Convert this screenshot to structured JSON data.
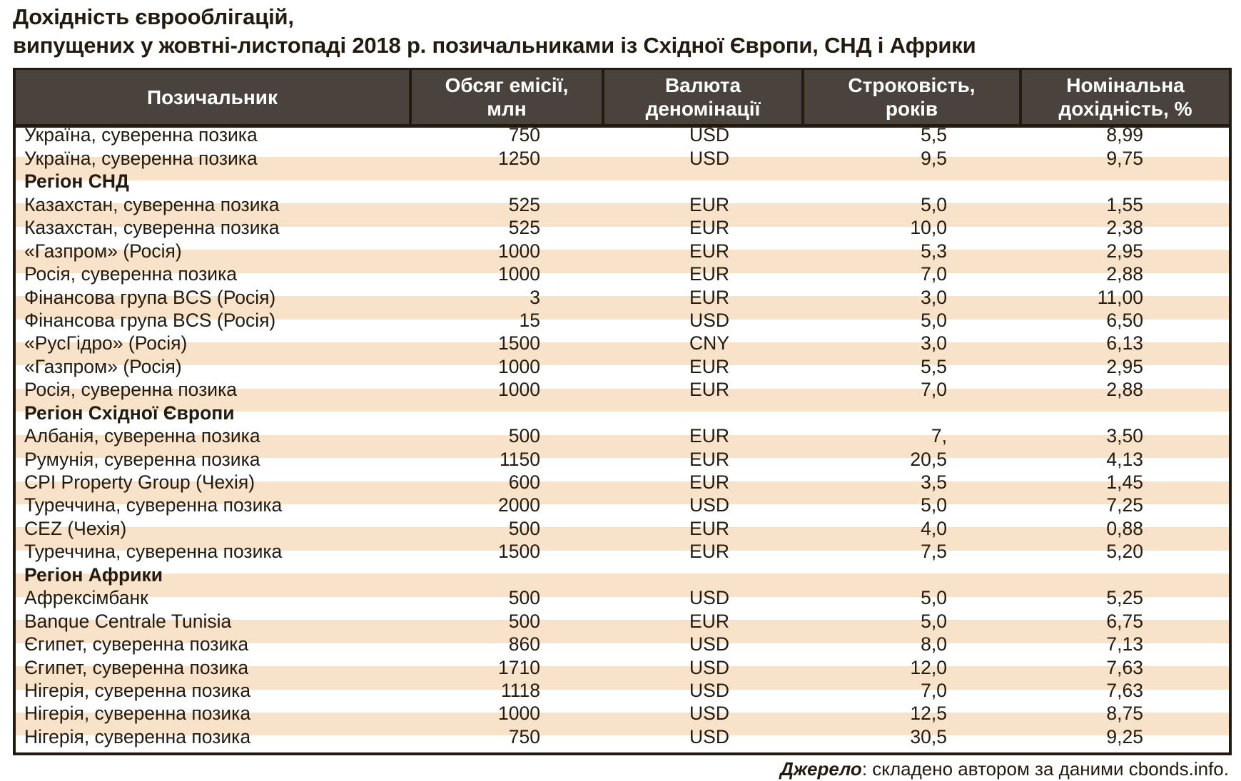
{
  "title": {
    "line1": "Дохідність єврооблігацій,",
    "line2": "випущених у жовтні-листопаді 2018 р. позичальниками із Східної Європи, СНД і Африки"
  },
  "headers": [
    "Позичальник",
    "Обсяг емісії, млн",
    "Валюта деномінації",
    "Строковість, років",
    "Номінальна дохідність, %"
  ],
  "headers_lines": [
    [
      "Позичальник"
    ],
    [
      "Обсяг емісії,",
      "млн"
    ],
    [
      "Валюта",
      "деномінації"
    ],
    [
      "Строковість,",
      "років"
    ],
    [
      "Номінальна",
      "дохідність, %"
    ]
  ],
  "rows": [
    {
      "type": "data",
      "name": "Україна, суверенна позика",
      "volume": "750",
      "currency": "USD",
      "maturity": "5,5",
      "yield": "8,99"
    },
    {
      "type": "data",
      "name": "Україна, суверенна позика",
      "volume": "1250",
      "currency": "USD",
      "maturity": "9,5",
      "yield": "9,75"
    },
    {
      "type": "section",
      "name": "Регіон СНД"
    },
    {
      "type": "data",
      "name": "Казахстан, суверенна позика",
      "volume": "525",
      "currency": "EUR",
      "maturity": "5,0",
      "yield": "1,55"
    },
    {
      "type": "data",
      "name": "Казахстан, суверенна позика",
      "volume": "525",
      "currency": "EUR",
      "maturity": "10,0",
      "yield": "2,38"
    },
    {
      "type": "data",
      "name": "«Газпром» (Росія)",
      "volume": "1000",
      "currency": "EUR",
      "maturity": "5,3",
      "yield": "2,95"
    },
    {
      "type": "data",
      "name": "Росія, суверенна позика",
      "volume": "1000",
      "currency": "EUR",
      "maturity": "7,0",
      "yield": "2,88"
    },
    {
      "type": "data",
      "name": "Фінансова група BCS (Росія)",
      "volume": "3",
      "currency": "EUR",
      "maturity": "3,0",
      "yield": "11,00"
    },
    {
      "type": "data",
      "name": "Фінансова група BCS (Росія)",
      "volume": "15",
      "currency": "USD",
      "maturity": "5,0",
      "yield": "6,50"
    },
    {
      "type": "data",
      "name": "«РусГідро» (Росія)",
      "volume": "1500",
      "currency": "CNY",
      "maturity": "3,0",
      "yield": "6,13"
    },
    {
      "type": "data",
      "name": "«Газпром» (Росія)",
      "volume": "1000",
      "currency": "EUR",
      "maturity": "5,5",
      "yield": "2,95"
    },
    {
      "type": "data",
      "name": "Росія, суверенна позика",
      "volume": "1000",
      "currency": "EUR",
      "maturity": "7,0",
      "yield": "2,88"
    },
    {
      "type": "section",
      "name": "Регіон Східної Європи"
    },
    {
      "type": "data",
      "name": "Албанія, суверенна позика",
      "volume": "500",
      "currency": "EUR",
      "maturity": "7,",
      "yield": "3,50"
    },
    {
      "type": "data",
      "name": "Румунія, суверенна позика",
      "volume": "1150",
      "currency": "EUR",
      "maturity": "20,5",
      "yield": "4,13"
    },
    {
      "type": "data",
      "name": "CPI Property Group (Чехія)",
      "volume": "600",
      "currency": "EUR",
      "maturity": "3,5",
      "yield": "1,45"
    },
    {
      "type": "data",
      "name": "Туреччина, суверенна позика",
      "volume": "2000",
      "currency": "USD",
      "maturity": "5,0",
      "yield": "7,25"
    },
    {
      "type": "data",
      "name": "CEZ (Чехія)",
      "volume": "500",
      "currency": "EUR",
      "maturity": "4,0",
      "yield": "0,88"
    },
    {
      "type": "data",
      "name": "Туреччина, суверенна позика",
      "volume": "1500",
      "currency": "EUR",
      "maturity": "7,5",
      "yield": "5,20"
    },
    {
      "type": "section",
      "name": "Регіон Африки"
    },
    {
      "type": "data",
      "name": "Афрексімбанк",
      "volume": "500",
      "currency": "USD",
      "maturity": "5,0",
      "yield": "5,25"
    },
    {
      "type": "data",
      "name": "Banque Centrale Tunisia",
      "volume": "500",
      "currency": "EUR",
      "maturity": "5,0",
      "yield": "6,75"
    },
    {
      "type": "data",
      "name": "Єгипет, суверенна позика",
      "volume": "860",
      "currency": "USD",
      "maturity": "8,0",
      "yield": "7,13"
    },
    {
      "type": "data",
      "name": "Єгипет, суверенна позика",
      "volume": "1710",
      "currency": "USD",
      "maturity": "12,0",
      "yield": "7,63"
    },
    {
      "type": "data",
      "name": "Нігерія, суверенна позика",
      "volume": "1118",
      "currency": "USD",
      "maturity": "7,0",
      "yield": "7,63"
    },
    {
      "type": "data",
      "name": "Нігерія, суверенна позика",
      "volume": "1000",
      "currency": "USD",
      "maturity": "12,5",
      "yield": "8,75"
    },
    {
      "type": "data",
      "name": "Нігерія, суверенна позика",
      "volume": "750",
      "currency": "USD",
      "maturity": "30,5",
      "yield": "9,25"
    }
  ],
  "source": {
    "label": "Джерело",
    "text": ": складено автором за даними cbonds.info."
  },
  "colors": {
    "header_bg": "#4a433d",
    "border": "#231a10",
    "stripe": "#f8e2c9",
    "text": "#231a10"
  }
}
